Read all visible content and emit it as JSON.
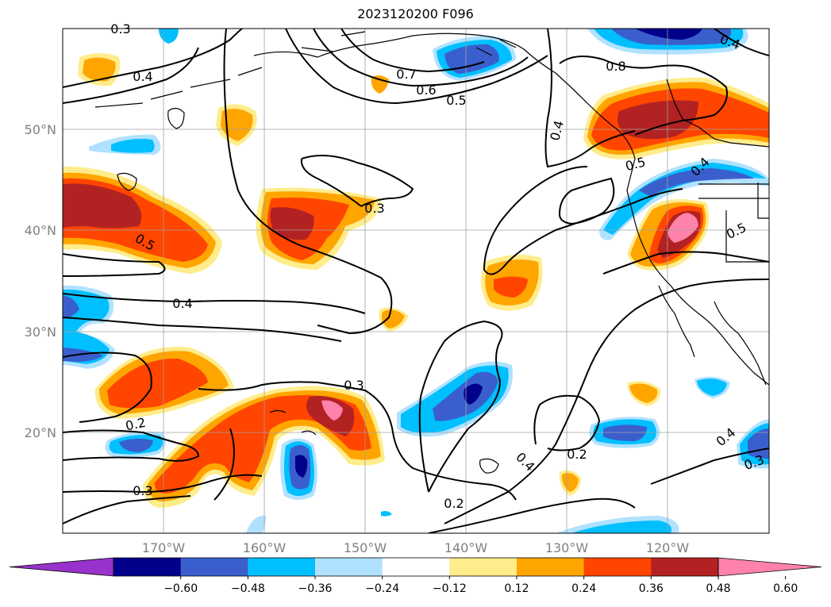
{
  "title": "2023120200 F096",
  "lat_labels": [
    "50°N",
    "40°N",
    "30°N",
    "20°N"
  ],
  "lon_labels": [
    "170°W",
    "160°W",
    "150°W",
    "140°W",
    "130°W",
    "120°W"
  ],
  "colorbar": {
    "ticks": [
      "−0.60",
      "−0.48",
      "−0.36",
      "−0.24",
      "−0.12",
      "0.12",
      "0.24",
      "0.36",
      "0.48",
      "0.60"
    ],
    "colors": [
      "#9932cc",
      "#00008b",
      "#3a5fcd",
      "#00bfff",
      "#b0e2ff",
      "#ffffff",
      "#ffec8b",
      "#ffa500",
      "#ff4500",
      "#b22222",
      "#ff82ab"
    ]
  },
  "contour_labels": [
    "0.4",
    "0.7",
    "0.6",
    "0.5",
    "0.4",
    "0.8",
    "0.4",
    "0.3",
    "0.5",
    "0.5",
    "0.4",
    "0.5",
    "0.3",
    "0.2",
    "0.4",
    "0.2",
    "0.3",
    "0.2",
    "0.4",
    "0.3",
    "0.3"
  ]
}
